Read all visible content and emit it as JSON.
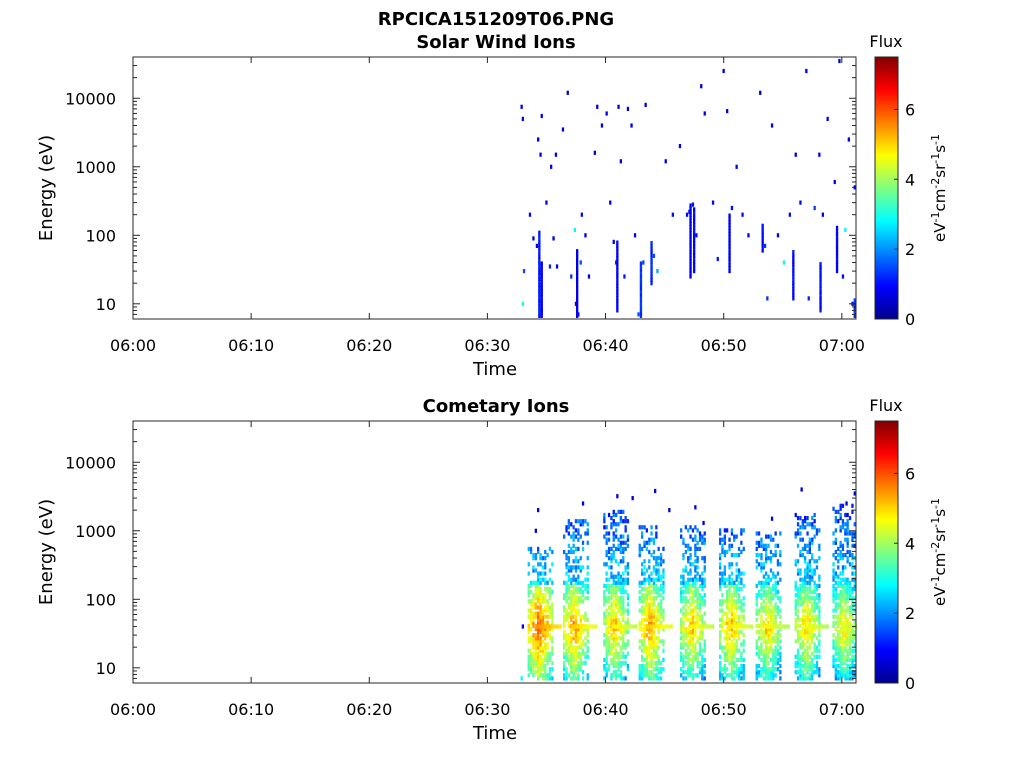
{
  "figure_title": "RPCICA151209T06.PNG",
  "colormap": [
    "#00008f",
    "#0000ff",
    "#0080ff",
    "#00ffff",
    "#80ff80",
    "#ffff00",
    "#ff8000",
    "#ff0000",
    "#800000"
  ],
  "chart_data": [
    {
      "type": "heatmap",
      "title": "Solar Wind Ions",
      "xlabel": "Time",
      "ylabel": "Energy (eV)",
      "x_ticks": [
        "06:00",
        "06:10",
        "06:20",
        "06:30",
        "06:40",
        "06:50",
        "07:00"
      ],
      "x_range_minutes": [
        0,
        61.2
      ],
      "y_scale": "log",
      "y_range": [
        6,
        40000
      ],
      "y_ticks": [
        "10",
        "100",
        "1000",
        "10000"
      ],
      "colorbar": {
        "title": "Flux",
        "unit": "eV-1cm-2sr-1s-1",
        "range": [
          0,
          7.5
        ],
        "ticks": [
          "0",
          "2",
          "4",
          "6"
        ]
      },
      "data_start_minute": 32.7,
      "points": [
        [
          32.8,
          7500,
          0.8
        ],
        [
          32.9,
          5000,
          0.9
        ],
        [
          33.0,
          30,
          1.5
        ],
        [
          32.9,
          10,
          2.8
        ],
        [
          33.5,
          200,
          1.0
        ],
        [
          33.8,
          90,
          0.7
        ],
        [
          34.1,
          70,
          0.8
        ],
        [
          34.3,
          40,
          1.5
        ],
        [
          34.3,
          15,
          1.5
        ],
        [
          34.5,
          8,
          1.3
        ],
        [
          34.5,
          5500,
          0.7
        ],
        [
          34.2,
          2500,
          0.7
        ],
        [
          34.4,
          1500,
          0.8
        ],
        [
          34.9,
          300,
          0.9
        ],
        [
          35.3,
          1000,
          0.9
        ],
        [
          35.7,
          1500,
          0.7
        ],
        [
          35.5,
          90,
          0.8
        ],
        [
          35.2,
          35,
          1.2
        ],
        [
          35.8,
          35,
          0.9
        ],
        [
          36.3,
          3500,
          0.6
        ],
        [
          36.7,
          12000,
          0.5
        ],
        [
          37.0,
          25,
          1.3
        ],
        [
          37.4,
          10,
          0.8
        ],
        [
          37.6,
          7,
          1.0
        ],
        [
          37.8,
          40,
          1.5
        ],
        [
          37.3,
          120,
          2.8
        ],
        [
          37.9,
          200,
          1.0
        ],
        [
          38.2,
          100,
          0.7
        ],
        [
          38.5,
          25,
          0.8
        ],
        [
          39.0,
          1600,
          0.6
        ],
        [
          39.2,
          7500,
          0.6
        ],
        [
          39.6,
          4000,
          0.7
        ],
        [
          40.0,
          6000,
          0.7
        ],
        [
          40.3,
          300,
          0.9
        ],
        [
          40.6,
          80,
          0.9
        ],
        [
          40.8,
          40,
          1.2
        ],
        [
          41.0,
          7500,
          0.6
        ],
        [
          41.2,
          1200,
          0.7
        ],
        [
          41.5,
          25,
          1.1
        ],
        [
          41.8,
          7000,
          0.6
        ],
        [
          42.1,
          4000,
          0.8
        ],
        [
          42.4,
          100,
          0.9
        ],
        [
          42.7,
          7,
          1.5
        ],
        [
          43.1,
          40,
          1.4
        ],
        [
          43.3,
          8000,
          0.6
        ],
        [
          44.0,
          50,
          1.5
        ],
        [
          44.3,
          30,
          2.2
        ],
        [
          45.0,
          1200,
          0.7
        ],
        [
          45.6,
          200,
          1.0
        ],
        [
          46.2,
          2000,
          0.7
        ],
        [
          46.8,
          200,
          1.0
        ],
        [
          47.0,
          220,
          1.2
        ],
        [
          47.3,
          280,
          1.0
        ],
        [
          47.6,
          100,
          1.1
        ],
        [
          48.0,
          15000,
          0.6
        ],
        [
          48.3,
          6000,
          0.7
        ],
        [
          49.0,
          300,
          0.9
        ],
        [
          49.4,
          45,
          1.1
        ],
        [
          49.9,
          25000,
          0.6
        ],
        [
          50.2,
          6500,
          0.7
        ],
        [
          50.6,
          250,
          1.0
        ],
        [
          51.0,
          1000,
          0.8
        ],
        [
          51.5,
          200,
          1.0
        ],
        [
          52.0,
          100,
          0.9
        ],
        [
          53.0,
          12000,
          0.5
        ],
        [
          53.4,
          70,
          1.3
        ],
        [
          53.6,
          12,
          1.3
        ],
        [
          54.0,
          4000,
          0.7
        ],
        [
          54.5,
          100,
          0.9
        ],
        [
          55.0,
          40,
          2.8
        ],
        [
          55.5,
          200,
          1.0
        ],
        [
          56.0,
          1500,
          0.7
        ],
        [
          56.4,
          300,
          1.0
        ],
        [
          56.9,
          25000,
          0.6
        ],
        [
          57.1,
          12,
          1.2
        ],
        [
          57.6,
          250,
          1.4
        ],
        [
          58.0,
          1500,
          0.7
        ],
        [
          58.3,
          200,
          0.8
        ],
        [
          58.7,
          5000,
          0.7
        ],
        [
          59.3,
          600,
          0.8
        ],
        [
          59.7,
          35000,
          0.6
        ],
        [
          60.0,
          25,
          1.0
        ],
        [
          60.2,
          120,
          2.8
        ],
        [
          60.5,
          2500,
          0.7
        ],
        [
          60.8,
          10,
          1.2
        ],
        [
          61.0,
          500,
          0.9
        ]
      ],
      "columns": [
        [
          34.3,
          6,
          120,
          1.1
        ],
        [
          34.5,
          6,
          40,
          0.9
        ],
        [
          37.5,
          6,
          60,
          0.8
        ],
        [
          40.9,
          8,
          80,
          0.9
        ],
        [
          42.9,
          6,
          40,
          1.3
        ],
        [
          43.8,
          20,
          80,
          1.2
        ],
        [
          47.1,
          25,
          300,
          0.8
        ],
        [
          47.4,
          30,
          250,
          1.0
        ],
        [
          50.4,
          30,
          200,
          0.9
        ],
        [
          53.2,
          60,
          150,
          1.0
        ],
        [
          55.8,
          12,
          60,
          1.0
        ],
        [
          58.1,
          8,
          40,
          1.0
        ],
        [
          59.5,
          30,
          140,
          0.9
        ],
        [
          61.0,
          6,
          12,
          1.3
        ]
      ]
    },
    {
      "type": "heatmap",
      "title": "Cometary Ions",
      "xlabel": "Time",
      "ylabel": "Energy (eV)",
      "x_ticks": [
        "06:00",
        "06:10",
        "06:20",
        "06:30",
        "06:40",
        "06:50",
        "07:00"
      ],
      "x_range_minutes": [
        0,
        61.2
      ],
      "y_scale": "log",
      "y_range": [
        6,
        40000
      ],
      "y_ticks": [
        "10",
        "100",
        "1000",
        "10000"
      ],
      "colorbar": {
        "title": "Flux",
        "unit": "eV-1cm-2sr-1s-1",
        "range": [
          0,
          7.5
        ],
        "ticks": [
          "0",
          "2",
          "4",
          "6"
        ]
      },
      "data_start_minute": 32.7,
      "bursts": [
        {
          "t": 34.3,
          "peak_flux": 6.0,
          "top_eV": 600
        },
        {
          "t": 37.3,
          "peak_flux": 5.6,
          "top_eV": 1500
        },
        {
          "t": 40.7,
          "peak_flux": 5.3,
          "top_eV": 2000
        },
        {
          "t": 43.7,
          "peak_flux": 5.6,
          "top_eV": 1200
        },
        {
          "t": 47.2,
          "peak_flux": 5.3,
          "top_eV": 1200
        },
        {
          "t": 50.5,
          "peak_flux": 5.4,
          "top_eV": 1100
        },
        {
          "t": 53.6,
          "peak_flux": 5.2,
          "top_eV": 1000
        },
        {
          "t": 56.9,
          "peak_flux": 5.2,
          "top_eV": 1800
        },
        {
          "t": 60.1,
          "peak_flux": 5.0,
          "top_eV": 2500
        }
      ],
      "points": [
        [
          34.2,
          2000,
          0.7
        ],
        [
          34.0,
          1000,
          0.6
        ],
        [
          38.0,
          2500,
          0.6
        ],
        [
          40.9,
          3200,
          0.7
        ],
        [
          44.1,
          3800,
          0.6
        ],
        [
          42.2,
          3000,
          0.7
        ],
        [
          45.3,
          2000,
          0.6
        ],
        [
          47.5,
          2200,
          0.7
        ],
        [
          48.2,
          1300,
          0.6
        ],
        [
          54.0,
          1500,
          0.7
        ],
        [
          56.5,
          4000,
          0.6
        ],
        [
          60.3,
          2500,
          0.7
        ],
        [
          61.0,
          3500,
          0.6
        ],
        [
          61.0,
          600,
          0.9
        ],
        [
          32.8,
          7,
          2.8
        ],
        [
          32.9,
          40,
          0.9
        ]
      ]
    }
  ]
}
